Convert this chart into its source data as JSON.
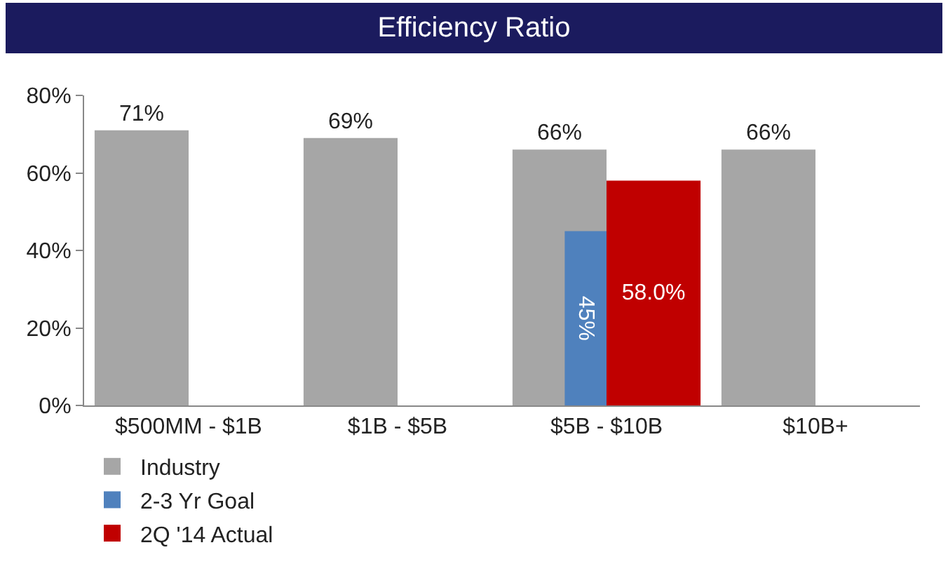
{
  "chart_data": {
    "type": "bar",
    "title": "Efficiency Ratio",
    "categories": [
      "$500MM - $1B",
      "$1B - $5B",
      "$5B - $10B",
      "$10B+"
    ],
    "series": [
      {
        "name": "Industry",
        "color": "#a6a6a6",
        "values": [
          71,
          69,
          66,
          66
        ],
        "value_labels": [
          "71%",
          "69%",
          "66%",
          "66%"
        ]
      },
      {
        "name": "2-3 Yr Goal",
        "color": "#4f81bd",
        "values": [
          null,
          null,
          45,
          null
        ],
        "value_labels": [
          null,
          null,
          "45%",
          null
        ]
      },
      {
        "name": "2Q '14 Actual",
        "color": "#c00000",
        "values": [
          null,
          null,
          58.0,
          null
        ],
        "value_labels": [
          null,
          null,
          "58.0%",
          null
        ]
      }
    ],
    "ylim": [
      0,
      80
    ],
    "yticks": [
      {
        "value": 0,
        "label": "0%"
      },
      {
        "value": 20,
        "label": "20%"
      },
      {
        "value": 40,
        "label": "40%"
      },
      {
        "value": 60,
        "label": "60%"
      },
      {
        "value": 80,
        "label": "80%"
      }
    ],
    "grid": false,
    "legend": "bottom"
  }
}
